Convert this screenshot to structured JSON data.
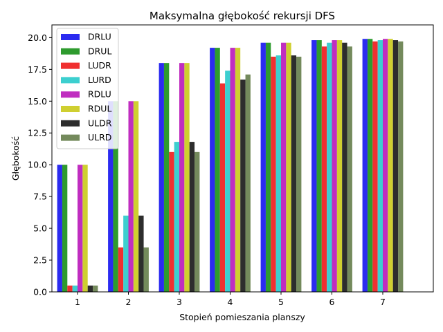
{
  "chart_data": {
    "type": "bar",
    "title": "Maksymalna głębokość rekursji DFS",
    "xlabel": "Stopień pomieszania planszy",
    "ylabel": "Głębokość",
    "categories": [
      "1",
      "2",
      "3",
      "4",
      "5",
      "6",
      "7"
    ],
    "ylim": [
      0,
      21
    ],
    "yticks": [
      "0.0",
      "2.5",
      "5.0",
      "7.5",
      "10.0",
      "12.5",
      "15.0",
      "17.5",
      "20.0"
    ],
    "legend_position": "top-left",
    "series": [
      {
        "name": "DRLU",
        "color": "#2b2bf0",
        "values": [
          10,
          15,
          18,
          19.2,
          19.6,
          19.8,
          19.9
        ]
      },
      {
        "name": "DRUL",
        "color": "#2e9b2e",
        "values": [
          10,
          15,
          18,
          19.2,
          19.6,
          19.8,
          19.9
        ]
      },
      {
        "name": "LUDR",
        "color": "#f03030",
        "values": [
          0.5,
          3.5,
          11.0,
          16.4,
          18.5,
          19.3,
          19.7
        ]
      },
      {
        "name": "LURD",
        "color": "#3ccfcf",
        "values": [
          0.5,
          6.0,
          11.8,
          17.4,
          18.6,
          19.6,
          19.8
        ]
      },
      {
        "name": "RDLU",
        "color": "#c02ec0",
        "values": [
          10,
          15,
          18,
          19.2,
          19.6,
          19.8,
          19.9
        ]
      },
      {
        "name": "RDUL",
        "color": "#cfcf30",
        "values": [
          10,
          15,
          18,
          19.2,
          19.6,
          19.8,
          19.9
        ]
      },
      {
        "name": "ULDR",
        "color": "#2d2d2d",
        "values": [
          0.5,
          6.0,
          11.8,
          16.7,
          18.6,
          19.6,
          19.8
        ]
      },
      {
        "name": "ULRD",
        "color": "#748a5c",
        "values": [
          0.5,
          3.5,
          11.0,
          17.1,
          18.5,
          19.3,
          19.7
        ]
      }
    ]
  }
}
